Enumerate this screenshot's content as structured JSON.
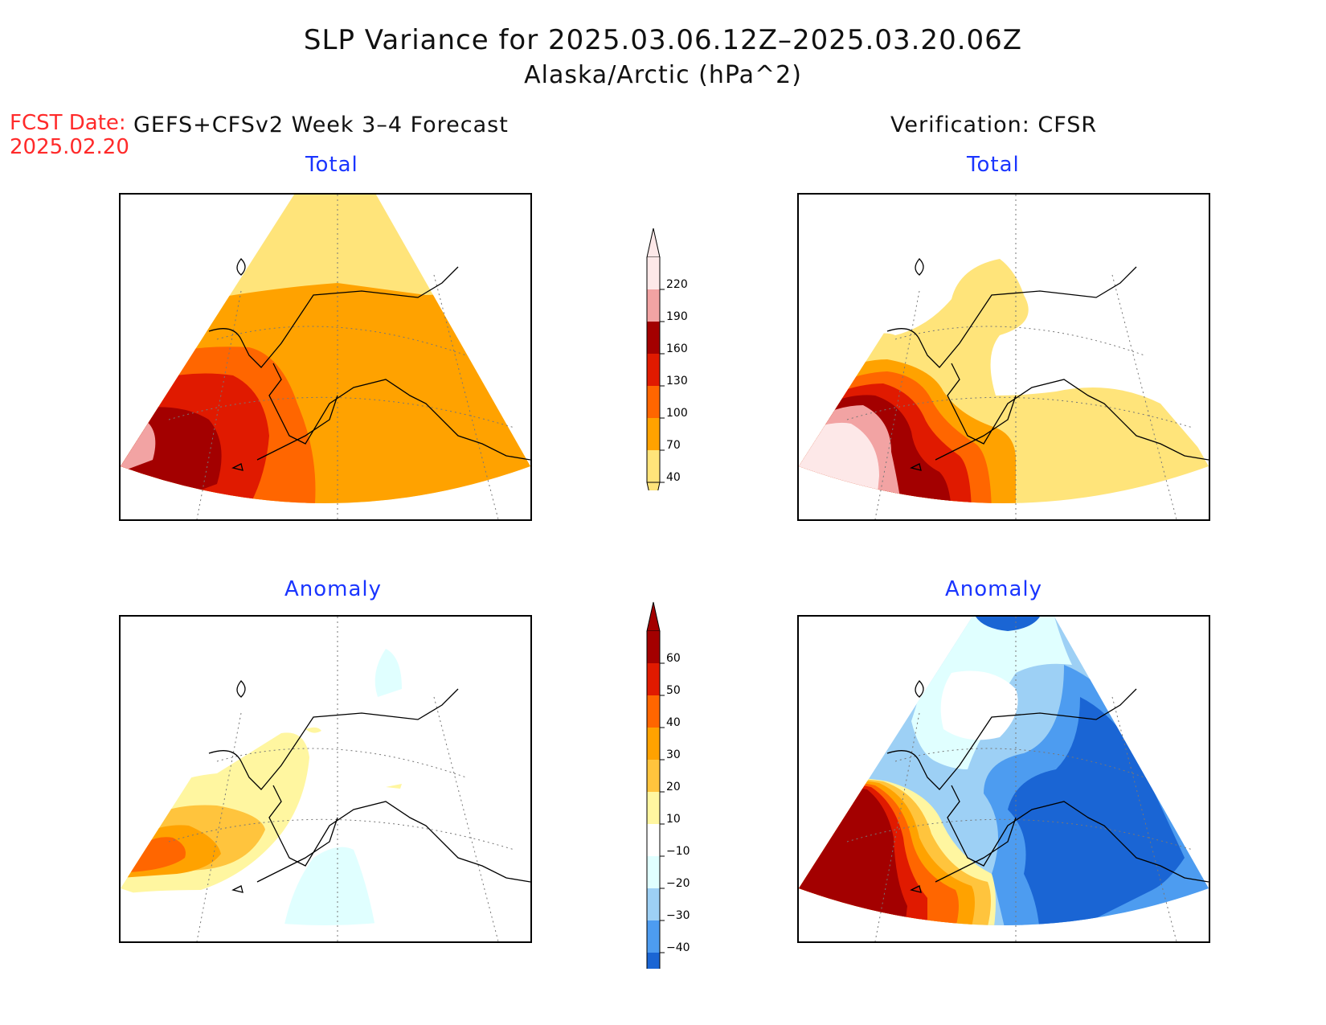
{
  "title": {
    "line1": "SLP Variance for 2025.03.06.12Z–2025.03.20.06Z",
    "line2": "Alaska/Arctic (hPa^2)"
  },
  "fcst": {
    "label": "FCST Date:",
    "date": "2025.02.20"
  },
  "left_header": "GEFS+CFSv2 Week 3–4 Forecast",
  "right_header": "Verification: CFSR",
  "panels": {
    "fcst_total": "Total",
    "verif_total": "Total",
    "fcst_anomaly": "Anomaly",
    "verif_anomaly": "Anomaly"
  },
  "colorbars": {
    "total": {
      "levels": [
        "220",
        "190",
        "160",
        "130",
        "100",
        "70",
        "40"
      ],
      "colors": [
        "#fde8e8",
        "#f2a3a3",
        "#a30000",
        "#e01a00",
        "#ff6600",
        "#ffa200",
        "#ffe47a"
      ]
    },
    "anomaly": {
      "levels": [
        "60",
        "50",
        "40",
        "30",
        "20",
        "10",
        "−10",
        "−20",
        "−30",
        "−40"
      ],
      "colors": [
        "#a30000",
        "#e01a00",
        "#ff6600",
        "#ffa200",
        "#ffc43d",
        "#fff6a0",
        "#ffffff",
        "#e0ffff",
        "#9dd0f5",
        "#4d9cf0",
        "#1a65d4"
      ]
    }
  },
  "map_colors": {
    "t40": "#ffe47a",
    "t70": "#ffa200",
    "t100": "#ff6600",
    "t130": "#e01a00",
    "t160": "#a30000",
    "t190": "#f2a3a3",
    "t220": "#fde8e8",
    "a10": "#fff6a0",
    "a20": "#ffc43d",
    "a30": "#ffa200",
    "a40": "#ff6600",
    "a50": "#e01a00",
    "a60": "#a30000",
    "an10": "#e0ffff",
    "an20": "#9dd0f5",
    "an30": "#4d9cf0",
    "an40": "#1a65d4"
  }
}
